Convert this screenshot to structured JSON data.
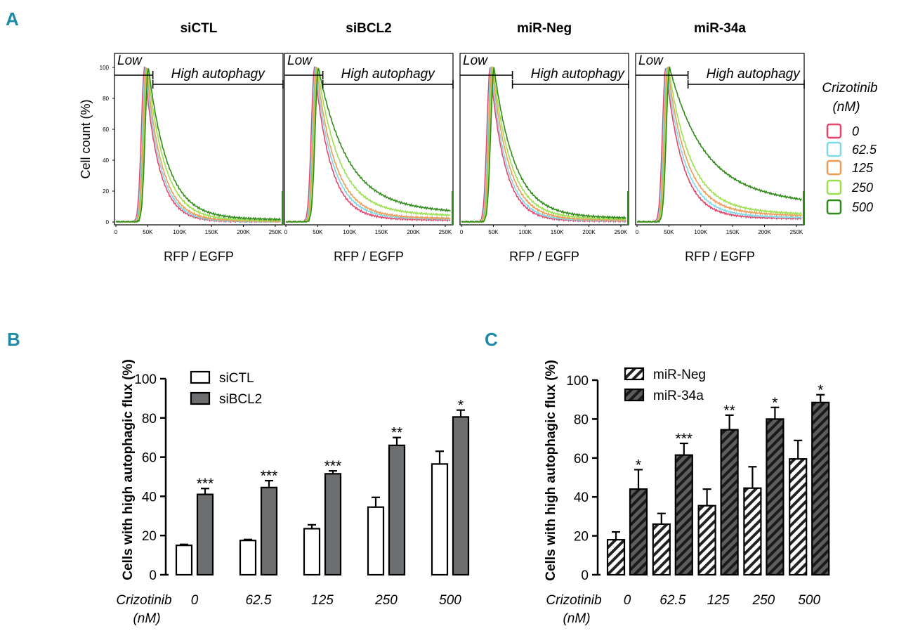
{
  "colors": {
    "panel_letter": "#1f8aa6",
    "bar_dark": "#6d6e6f",
    "bar_white": "#ffffff",
    "axis": "#000000",
    "histogram_colors": [
      "#e8436b",
      "#7dd8e8",
      "#f19a53",
      "#9ae04e",
      "#2f8a1a"
    ]
  },
  "panel_letters": [
    "A",
    "B",
    "C"
  ],
  "panelA": {
    "ylabel": "Cell count (%)",
    "xlabel": "RFP / EGFP",
    "low_label": "Low",
    "high_label": "High autophagy",
    "ytick_labels": [
      "0",
      "20",
      "40",
      "60",
      "80",
      "100"
    ],
    "xtick_labels": [
      "0",
      "50K",
      "100K",
      "150K",
      "200K",
      "250K"
    ],
    "legend_title_line1": "Crizotinib",
    "legend_title_line2": "(nM)",
    "legend_entries": [
      "0",
      "62.5",
      "125",
      "250",
      "500"
    ],
    "panels": [
      {
        "title": "siCTL",
        "gate_k": 58,
        "tails": [
          0.5,
          0.6,
          1.0,
          1.5,
          2.5
        ],
        "widths": [
          22,
          23,
          24,
          27,
          30
        ]
      },
      {
        "title": "siBCL2",
        "gate_k": 58,
        "tails": [
          2.0,
          3.0,
          3.5,
          6.5,
          10.0
        ],
        "widths": [
          25,
          27,
          29,
          34,
          44
        ]
      },
      {
        "title": "miR-Neg",
        "gate_k": 80,
        "tails": [
          1.0,
          1.5,
          2.0,
          3.0,
          4.0
        ],
        "widths": [
          23,
          24,
          26,
          28,
          32
        ]
      },
      {
        "title": "miR-34a",
        "gate_k": 80,
        "tails": [
          3.5,
          4.5,
          6.5,
          8.0,
          20.0
        ],
        "widths": [
          26,
          28,
          30,
          34,
          52
        ]
      }
    ]
  },
  "chart_data": [
    {
      "type": "bar",
      "panel": "B",
      "ylabel": "Cells with high autophagic flux (%)",
      "xlabel_line1": "Crizotinib",
      "xlabel_line2": "(nM)",
      "categories": [
        "0",
        "62.5",
        "125",
        "250",
        "500"
      ],
      "ylim": [
        0,
        100
      ],
      "ytick_labels": [
        "0",
        "20",
        "40",
        "60",
        "80",
        "100"
      ],
      "series": [
        {
          "name": "siCTL",
          "values": [
            15,
            17.5,
            23.5,
            34.5,
            56.5
          ],
          "errors": [
            0.5,
            0.5,
            2,
            5,
            6.5
          ]
        },
        {
          "name": "siBCL2",
          "values": [
            41,
            44.5,
            51.5,
            66,
            80.5
          ],
          "errors": [
            3,
            3.5,
            1.5,
            4,
            3.5
          ]
        }
      ],
      "significance": [
        "***",
        "***",
        "***",
        "**",
        "*"
      ]
    },
    {
      "type": "bar",
      "panel": "C",
      "ylabel": "Cells with high autophagic flux (%)",
      "xlabel_line1": "Crizotinib",
      "xlabel_line2": "(nM)",
      "categories": [
        "0",
        "62.5",
        "125",
        "250",
        "500"
      ],
      "ylim": [
        0,
        100
      ],
      "ytick_labels": [
        "0",
        "20",
        "40",
        "60",
        "80",
        "100"
      ],
      "series": [
        {
          "name": "miR-Neg",
          "values": [
            18,
            26,
            35.5,
            44.5,
            59.5
          ],
          "errors": [
            4,
            5.5,
            8.5,
            11,
            9.5
          ]
        },
        {
          "name": "miR-34a",
          "values": [
            44,
            61.5,
            74.5,
            80,
            88.5
          ],
          "errors": [
            10,
            6,
            7.5,
            6,
            4
          ]
        }
      ],
      "significance": [
        "*",
        "***",
        "**",
        "*",
        "*"
      ]
    }
  ]
}
